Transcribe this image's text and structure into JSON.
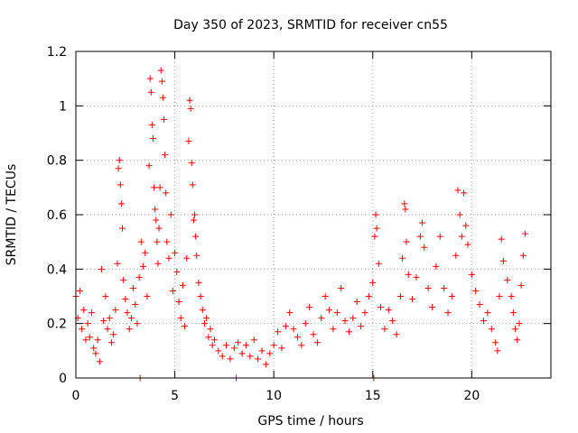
{
  "chart_data": {
    "type": "scatter",
    "title": "Day 350 of 2023, SRMTID for receiver cn55",
    "xlabel": "GPS time / hours",
    "ylabel": "SRMTID / TECUs",
    "xlim": [
      0,
      24
    ],
    "ylim": [
      0,
      1.2
    ],
    "xticks": [
      0,
      5,
      10,
      15,
      20
    ],
    "yticks": [
      0,
      0.2,
      0.4,
      0.6,
      0.8,
      1.0,
      1.2
    ],
    "xtick_labels": [
      "0",
      "5",
      "10",
      "15",
      "20"
    ],
    "ytick_labels": [
      "0",
      "0.2",
      "0.4",
      "0.6",
      "0.8",
      "1",
      "1.2"
    ],
    "grid": true,
    "marker": "+",
    "series": [
      {
        "name": "SRMTID",
        "color": "#ff0000",
        "points": [
          [
            0.0,
            0.3
          ],
          [
            0.1,
            0.22
          ],
          [
            0.2,
            0.32
          ],
          [
            0.3,
            0.18
          ],
          [
            0.4,
            0.25
          ],
          [
            0.5,
            0.14
          ],
          [
            0.6,
            0.2
          ],
          [
            0.7,
            0.15
          ],
          [
            0.8,
            0.24
          ],
          [
            0.9,
            0.11
          ],
          [
            1.0,
            0.09
          ],
          [
            1.1,
            0.14
          ],
          [
            1.2,
            0.06
          ],
          [
            1.3,
            0.4
          ],
          [
            1.4,
            0.21
          ],
          [
            1.5,
            0.3
          ],
          [
            1.6,
            0.18
          ],
          [
            1.7,
            0.22
          ],
          [
            1.8,
            0.13
          ],
          [
            1.9,
            0.16
          ],
          [
            2.0,
            0.25
          ],
          [
            2.1,
            0.42
          ],
          [
            2.15,
            0.77
          ],
          [
            2.2,
            0.8
          ],
          [
            2.25,
            0.71
          ],
          [
            2.3,
            0.64
          ],
          [
            2.35,
            0.55
          ],
          [
            2.4,
            0.36
          ],
          [
            2.5,
            0.29
          ],
          [
            2.6,
            0.24
          ],
          [
            2.7,
            0.18
          ],
          [
            2.8,
            0.22
          ],
          [
            2.9,
            0.33
          ],
          [
            3.0,
            0.27
          ],
          [
            3.1,
            0.2
          ],
          [
            3.2,
            0.37
          ],
          [
            3.25,
            0.0
          ],
          [
            3.3,
            0.5
          ],
          [
            3.4,
            0.41
          ],
          [
            3.5,
            0.46
          ],
          [
            3.6,
            0.3
          ],
          [
            3.7,
            0.78
          ],
          [
            3.75,
            1.1
          ],
          [
            3.8,
            1.05
          ],
          [
            3.85,
            0.93
          ],
          [
            3.9,
            0.88
          ],
          [
            3.95,
            0.7
          ],
          [
            4.0,
            0.62
          ],
          [
            4.05,
            0.58
          ],
          [
            4.1,
            0.5
          ],
          [
            4.15,
            0.42
          ],
          [
            4.2,
            0.55
          ],
          [
            4.25,
            0.7
          ],
          [
            4.3,
            1.13
          ],
          [
            4.35,
            1.09
          ],
          [
            4.4,
            1.03
          ],
          [
            4.45,
            0.95
          ],
          [
            4.5,
            0.82
          ],
          [
            4.55,
            0.68
          ],
          [
            4.6,
            0.5
          ],
          [
            4.7,
            0.44
          ],
          [
            4.8,
            0.6
          ],
          [
            4.9,
            0.32
          ],
          [
            5.0,
            0.46
          ],
          [
            5.1,
            0.39
          ],
          [
            5.2,
            0.28
          ],
          [
            5.3,
            0.22
          ],
          [
            5.4,
            0.34
          ],
          [
            5.5,
            0.19
          ],
          [
            5.6,
            0.44
          ],
          [
            5.7,
            0.87
          ],
          [
            5.75,
            1.02
          ],
          [
            5.8,
            0.99
          ],
          [
            5.85,
            0.79
          ],
          [
            5.9,
            0.71
          ],
          [
            5.95,
            0.58
          ],
          [
            6.0,
            0.6
          ],
          [
            6.05,
            0.52
          ],
          [
            6.1,
            0.45
          ],
          [
            6.2,
            0.35
          ],
          [
            6.3,
            0.3
          ],
          [
            6.4,
            0.25
          ],
          [
            6.5,
            0.2
          ],
          [
            6.6,
            0.22
          ],
          [
            6.7,
            0.15
          ],
          [
            6.8,
            0.18
          ],
          [
            6.9,
            0.12
          ],
          [
            7.0,
            0.14
          ],
          [
            7.2,
            0.1
          ],
          [
            7.4,
            0.08
          ],
          [
            7.6,
            0.12
          ],
          [
            7.8,
            0.07
          ],
          [
            8.0,
            0.11
          ],
          [
            8.1,
            0.0
          ],
          [
            8.2,
            0.13
          ],
          [
            8.4,
            0.09
          ],
          [
            8.6,
            0.12
          ],
          [
            8.8,
            0.08
          ],
          [
            9.0,
            0.14
          ],
          [
            9.2,
            0.07
          ],
          [
            9.4,
            0.1
          ],
          [
            9.6,
            0.05
          ],
          [
            9.8,
            0.09
          ],
          [
            10.0,
            0.12
          ],
          [
            10.2,
            0.17
          ],
          [
            10.4,
            0.11
          ],
          [
            10.6,
            0.19
          ],
          [
            10.8,
            0.24
          ],
          [
            11.0,
            0.18
          ],
          [
            11.2,
            0.15
          ],
          [
            11.4,
            0.12
          ],
          [
            11.6,
            0.2
          ],
          [
            11.8,
            0.26
          ],
          [
            12.0,
            0.16
          ],
          [
            12.2,
            0.13
          ],
          [
            12.4,
            0.22
          ],
          [
            12.6,
            0.3
          ],
          [
            12.8,
            0.25
          ],
          [
            13.0,
            0.18
          ],
          [
            13.2,
            0.24
          ],
          [
            13.4,
            0.33
          ],
          [
            13.6,
            0.21
          ],
          [
            13.8,
            0.17
          ],
          [
            14.0,
            0.22
          ],
          [
            14.2,
            0.28
          ],
          [
            14.4,
            0.19
          ],
          [
            14.6,
            0.24
          ],
          [
            14.8,
            0.3
          ],
          [
            15.0,
            0.35
          ],
          [
            15.05,
            0.0
          ],
          [
            15.1,
            0.52
          ],
          [
            15.15,
            0.6
          ],
          [
            15.2,
            0.55
          ],
          [
            15.3,
            0.42
          ],
          [
            15.4,
            0.26
          ],
          [
            15.6,
            0.18
          ],
          [
            15.8,
            0.25
          ],
          [
            16.0,
            0.21
          ],
          [
            16.2,
            0.16
          ],
          [
            16.4,
            0.3
          ],
          [
            16.5,
            0.44
          ],
          [
            16.6,
            0.64
          ],
          [
            16.65,
            0.62
          ],
          [
            16.7,
            0.5
          ],
          [
            16.8,
            0.38
          ],
          [
            17.0,
            0.29
          ],
          [
            17.2,
            0.37
          ],
          [
            17.4,
            0.52
          ],
          [
            17.5,
            0.57
          ],
          [
            17.6,
            0.48
          ],
          [
            17.8,
            0.33
          ],
          [
            18.0,
            0.26
          ],
          [
            18.2,
            0.41
          ],
          [
            18.4,
            0.52
          ],
          [
            18.6,
            0.33
          ],
          [
            18.8,
            0.24
          ],
          [
            19.0,
            0.3
          ],
          [
            19.2,
            0.45
          ],
          [
            19.3,
            0.69
          ],
          [
            19.4,
            0.6
          ],
          [
            19.5,
            0.52
          ],
          [
            19.6,
            0.68
          ],
          [
            19.7,
            0.56
          ],
          [
            19.8,
            0.49
          ],
          [
            20.0,
            0.38
          ],
          [
            20.2,
            0.32
          ],
          [
            20.4,
            0.27
          ],
          [
            20.6,
            0.21
          ],
          [
            20.8,
            0.24
          ],
          [
            21.0,
            0.18
          ],
          [
            21.2,
            0.13
          ],
          [
            21.3,
            0.1
          ],
          [
            21.4,
            0.3
          ],
          [
            21.5,
            0.51
          ],
          [
            21.6,
            0.43
          ],
          [
            21.8,
            0.36
          ],
          [
            22.0,
            0.3
          ],
          [
            22.1,
            0.24
          ],
          [
            22.2,
            0.18
          ],
          [
            22.3,
            0.14
          ],
          [
            22.4,
            0.2
          ],
          [
            22.5,
            0.34
          ],
          [
            22.6,
            0.45
          ],
          [
            22.7,
            0.53
          ]
        ]
      }
    ]
  }
}
